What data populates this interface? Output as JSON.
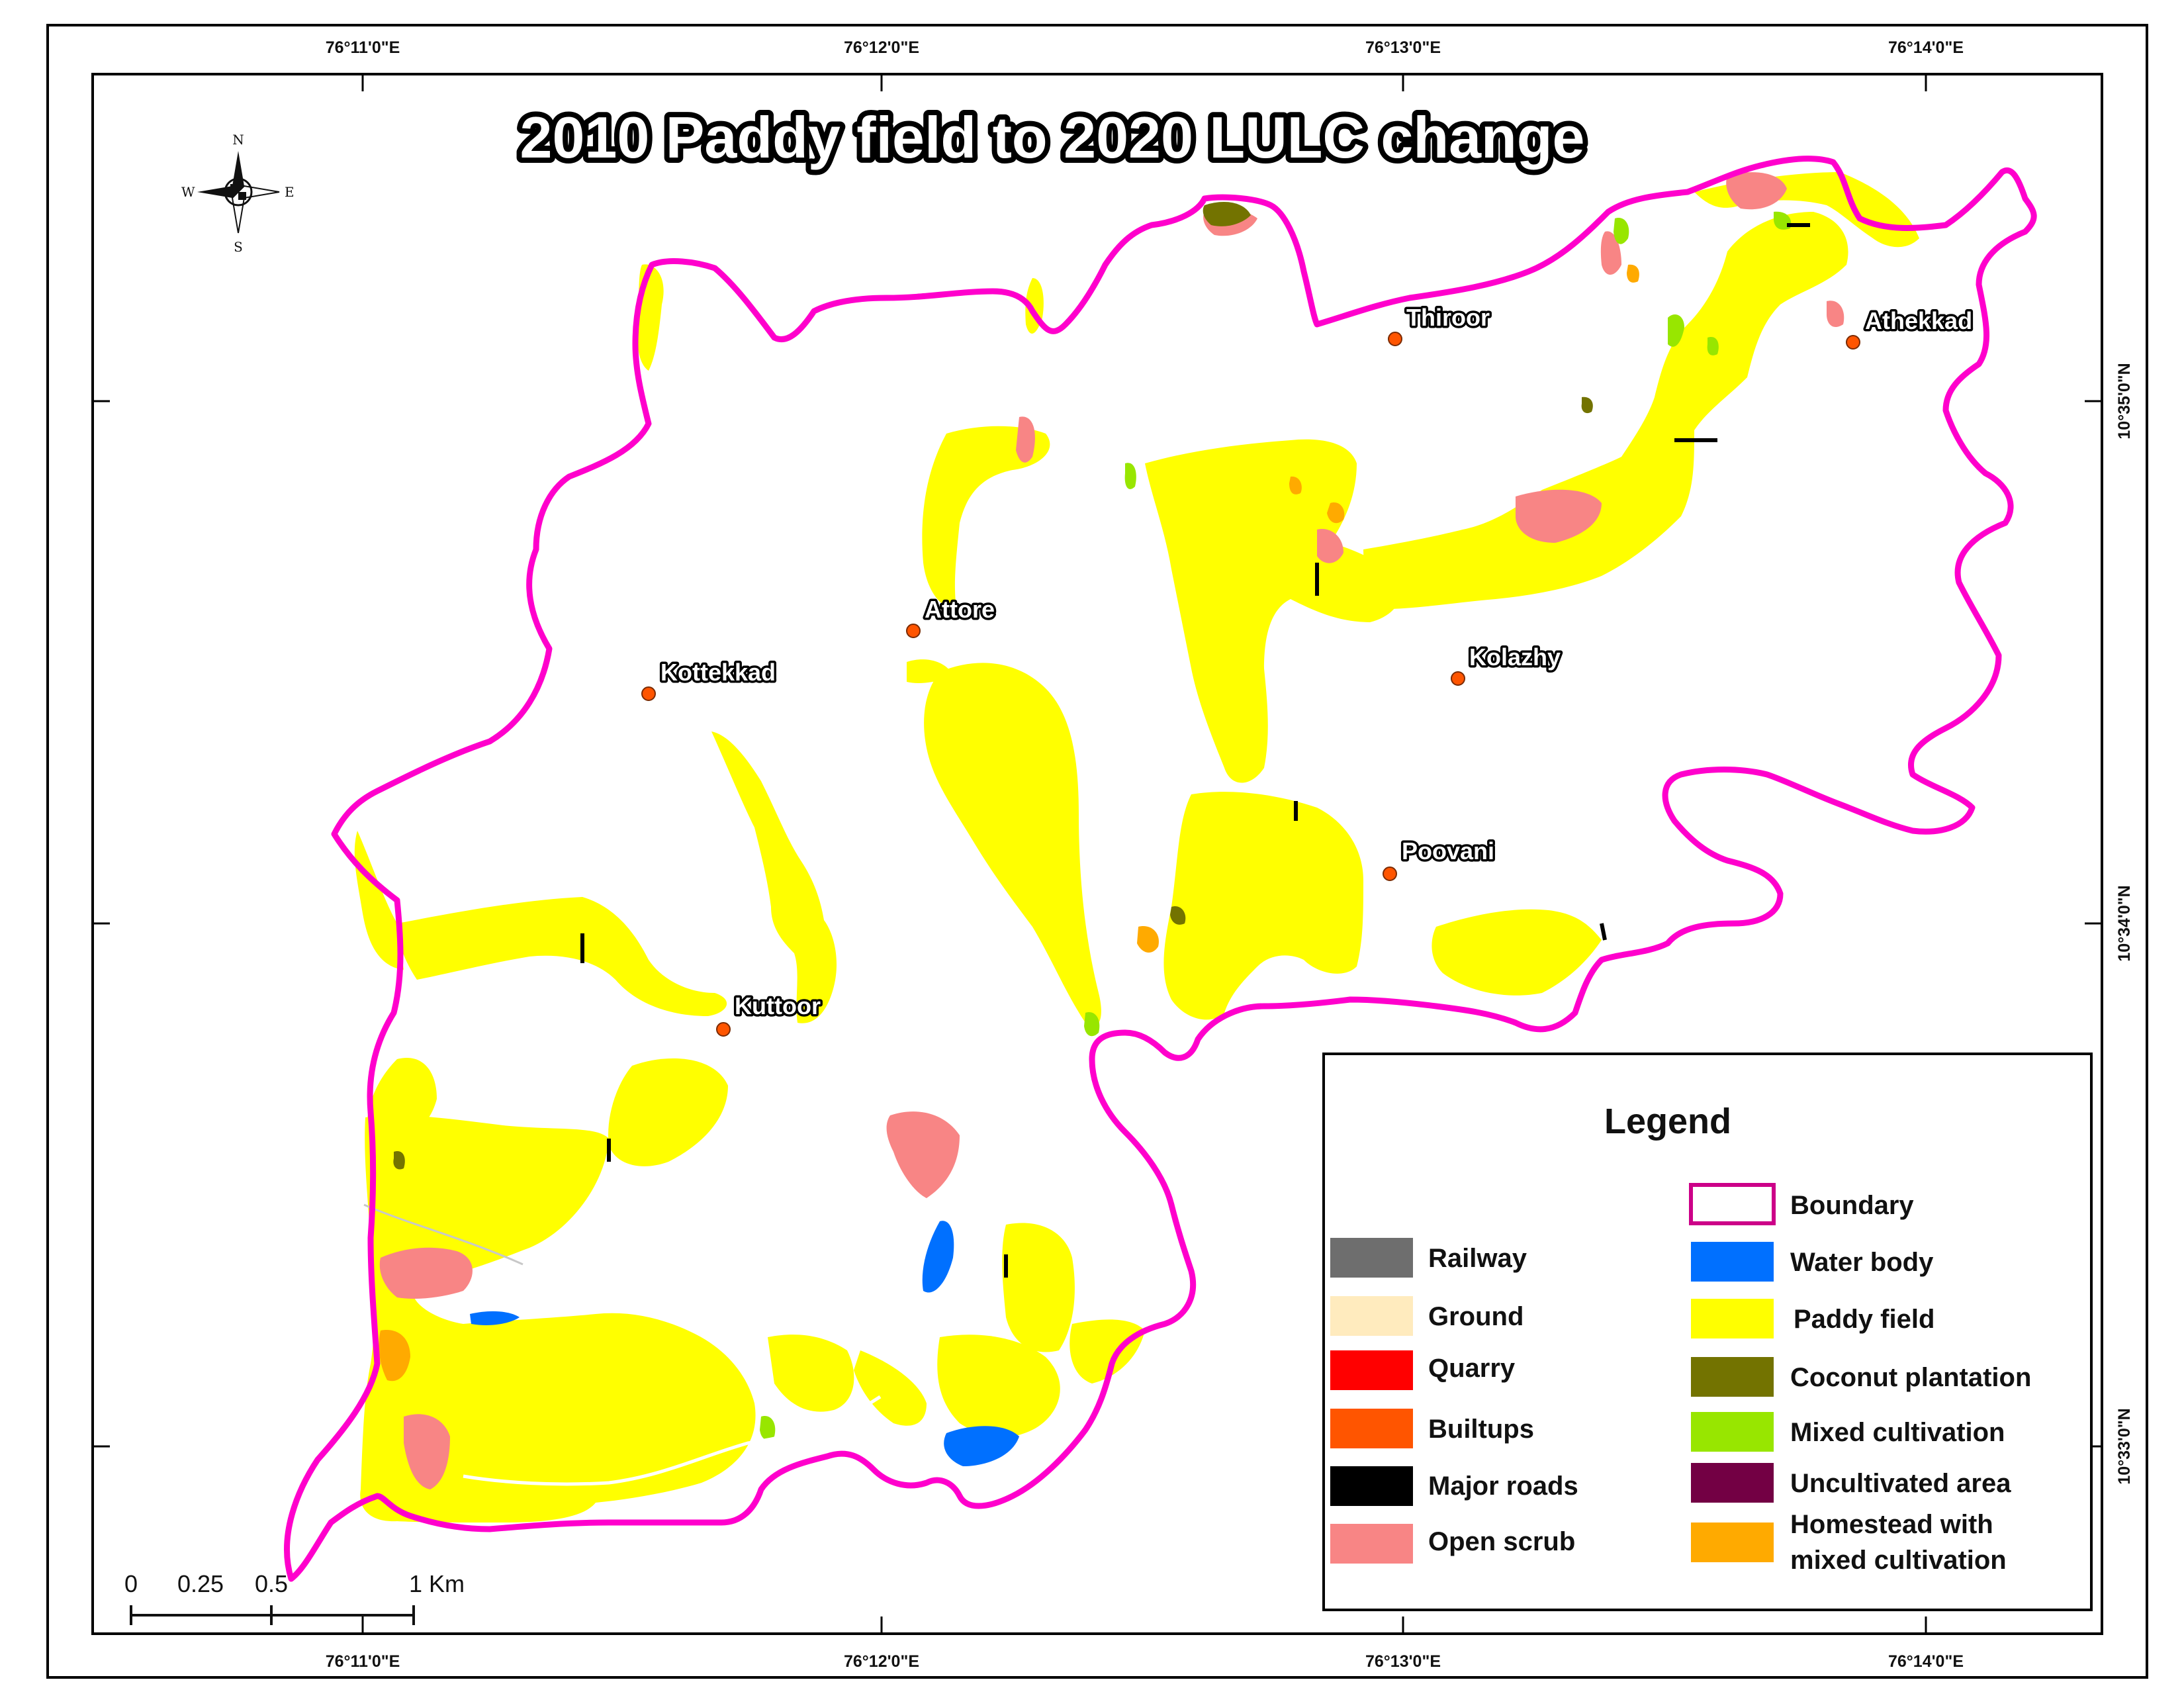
{
  "title": "2010 Paddy field to 2020 LULC change",
  "graticule": {
    "top_labels": [
      "76°11'0\"E",
      "76°12'0\"E",
      "76°13'0\"E",
      "76°14'0\"E"
    ],
    "bottom_labels": [
      "76°11'0\"E",
      "76°12'0\"E",
      "76°13'0\"E",
      "76°14'0\"E"
    ],
    "right_labels": [
      "10°35'0\"N",
      "10°34'0\"N",
      "10°33'0\"N"
    ]
  },
  "places": [
    {
      "name": "Thiroor"
    },
    {
      "name": "Athekkad"
    },
    {
      "name": "Attore"
    },
    {
      "name": "Kottekkad"
    },
    {
      "name": "Kolazhy"
    },
    {
      "name": "Poovani"
    },
    {
      "name": "Kuttoor"
    }
  ],
  "north_arrow": {
    "n": "N",
    "s": "S",
    "e": "E",
    "w": "W"
  },
  "scale_bar": {
    "labels": [
      "0",
      "0.25",
      "0.5",
      "1 Km"
    ]
  },
  "legend": {
    "title": "Legend",
    "left": [
      {
        "label": "Railway",
        "color": "#6e6e6e"
      },
      {
        "label": "Ground",
        "color": "#ffebbe"
      },
      {
        "label": "Quarry",
        "color": "#ff0000"
      },
      {
        "label": "Builtups",
        "color": "#ff5500"
      },
      {
        "label": "Major roads",
        "color": "#000000"
      },
      {
        "label": "Open scrub",
        "color": "#f88585"
      }
    ],
    "right": [
      {
        "label": "Boundary",
        "color": "#ff00cc"
      },
      {
        "label": "Water body",
        "color": "#0070ff"
      },
      {
        "label": "Paddy field",
        "color": "#ffff00"
      },
      {
        "label": "Coconut plantation",
        "color": "#737300"
      },
      {
        "label": "Mixed cultivation",
        "color": "#98e600"
      },
      {
        "label": "Uncultivated area",
        "color": "#730044"
      },
      {
        "label": "Homestead with mixed cultivation",
        "label_lines": [
          "Homestead with",
          "mixed cultivation"
        ],
        "color": "#ffaa00"
      }
    ]
  },
  "colors": {
    "boundary": "#ff00cc",
    "paddy": "#ffff00",
    "open_scrub": "#f88585",
    "mixed": "#98e600",
    "coconut": "#737300",
    "homestead": "#ffaa00",
    "water": "#0070ff",
    "roads": "#000000",
    "place_dot": "#ff5500"
  }
}
